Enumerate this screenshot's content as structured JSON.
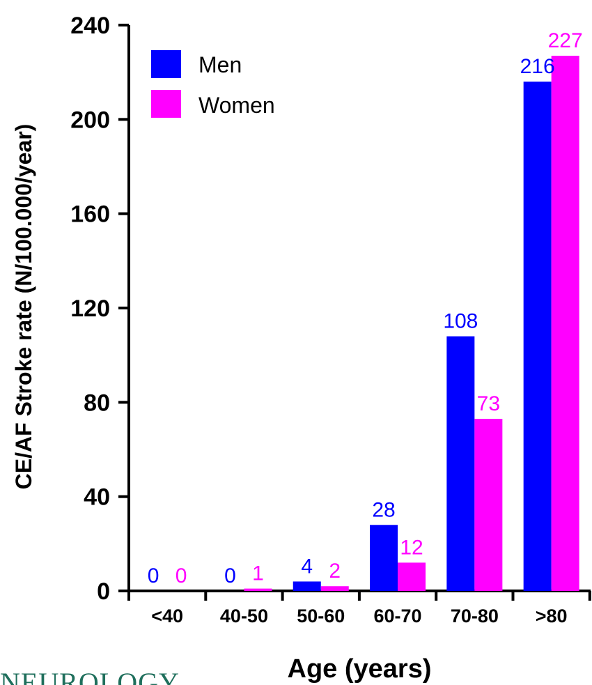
{
  "chart_data": {
    "type": "bar",
    "ylabel": "CE/AF Stroke rate (N/100.000/year)",
    "xlabel": "Age (years)",
    "categories": [
      "<40",
      "40-50",
      "50-60",
      "60-70",
      "70-80",
      ">80"
    ],
    "series": [
      {
        "name": "Men",
        "color": "#0000ff",
        "values": [
          0,
          0,
          4,
          28,
          108,
          216
        ]
      },
      {
        "name": "Women",
        "color": "#ff00ff",
        "values": [
          0,
          1,
          2,
          12,
          73,
          227
        ]
      }
    ],
    "ylim": [
      0,
      240
    ],
    "yticks": [
      0,
      40,
      80,
      120,
      160,
      200,
      240
    ],
    "legend_position": "top-left",
    "grid": false
  },
  "logo": {
    "text": "NEUROLOGY"
  }
}
